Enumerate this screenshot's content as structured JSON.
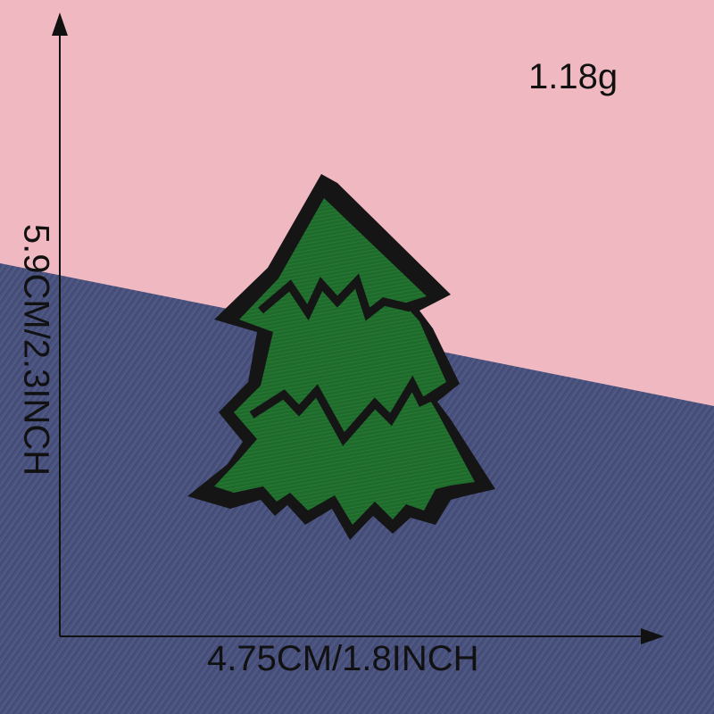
{
  "product": {
    "weight": "1.18g",
    "width_label": "4.75CM/1.8INCH",
    "height_label": "5.9CM/2.3INCH"
  },
  "colors": {
    "pink_backdrop": "#f0b8c0",
    "denim": "#4f5784",
    "patch_green": "#1f6b2c",
    "patch_border": "#151515"
  }
}
